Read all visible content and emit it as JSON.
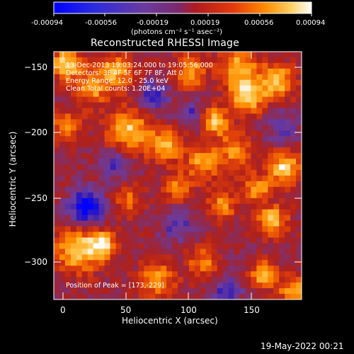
{
  "colorbar": {
    "ticks": [
      "-0.00094",
      "-0.00056",
      "-0.00019",
      "0.00019",
      "0.00056",
      "0.00094"
    ],
    "units": "(photons cm⁻² s⁻¹ asec⁻²)"
  },
  "title": "Reconstructed RHESSI Image",
  "annotations": {
    "time_range": "13-Dec-2013 19:03:24.000 to 19:05:56.000",
    "detectors": "Detectors: 3F 4F 5F 6F 7F 8F, Att 0",
    "energy_range": "Energy Range: 12.0 - 25.0 keV",
    "method": "Clean     Total counts: 1.20E+04",
    "peak": "Position of Peak = [173,-229]"
  },
  "axes": {
    "xlabel": "Heliocentric X (arcsec)",
    "ylabel": "Heliocentric Y (arcsec)",
    "xticks": [
      "0",
      "50",
      "100",
      "150"
    ],
    "yticks": [
      "−150",
      "−200",
      "−250",
      "−300"
    ]
  },
  "footer": {
    "date": "19-May-2022 00:21"
  },
  "colors": {
    "background": "#000000",
    "colormap": [
      "#0000ff",
      "#3a1fb0",
      "#6a3ba0",
      "#8a2c5a",
      "#b0201a",
      "#e0400a",
      "#ff8a00",
      "#ffc040",
      "#ffffff"
    ]
  }
}
